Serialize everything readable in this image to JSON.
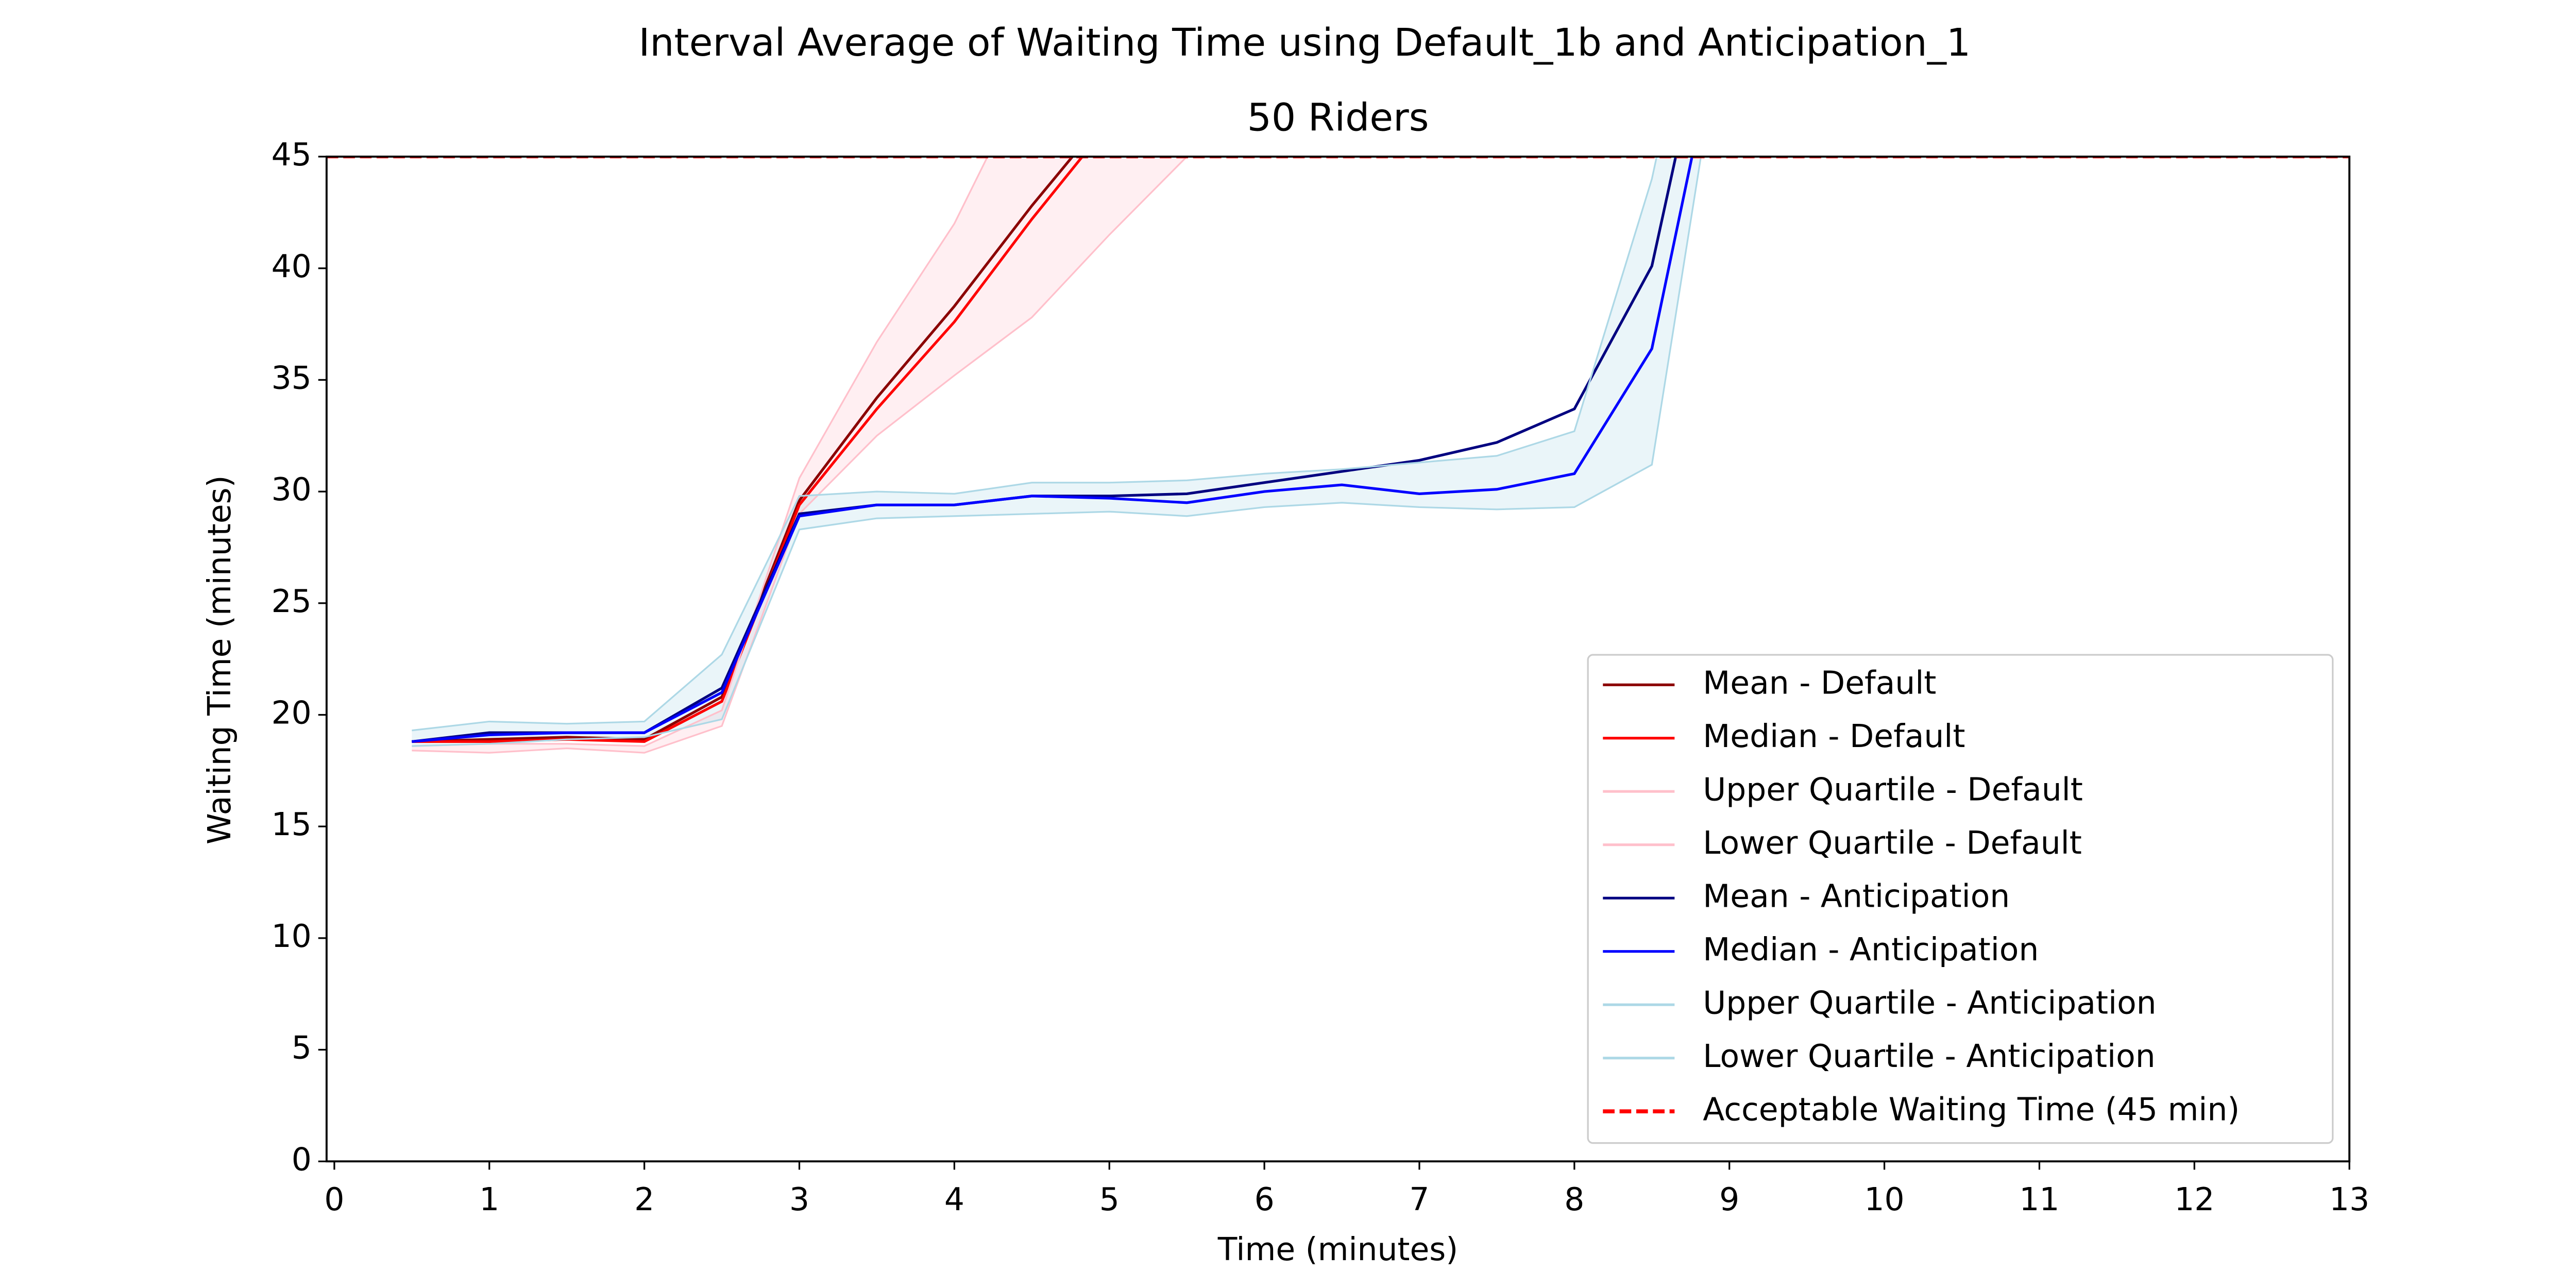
{
  "chart_data": {
    "type": "line",
    "title": "Interval Average of Waiting Time using Default_1b and Anticipation_1",
    "subtitle": "50 Riders",
    "x_label": "Time (minutes)",
    "y_label": "Waiting Time (minutes)",
    "x": [
      0.5,
      1,
      1.5,
      2,
      2.5,
      3,
      3.5,
      4,
      4.5,
      5,
      5.5,
      6,
      6.5,
      7,
      7.5,
      8,
      8.5,
      9
    ],
    "series": [
      {
        "name": "Mean - Default",
        "color": "#8b0000",
        "values": [
          18.8,
          18.9,
          19.0,
          18.9,
          20.8,
          29.6,
          34.2,
          38.3,
          42.8,
          47.0,
          null,
          null,
          null,
          null,
          null,
          null,
          null,
          null
        ]
      },
      {
        "name": "Median - Default",
        "color": "#ff0000",
        "values": [
          18.8,
          18.8,
          18.9,
          18.8,
          20.6,
          29.4,
          33.7,
          37.6,
          42.2,
          46.5,
          null,
          null,
          null,
          null,
          null,
          null,
          null,
          null
        ]
      },
      {
        "name": "Upper Quartile - Default",
        "color": "#ffc0cb",
        "values": [
          18.6,
          18.7,
          18.7,
          18.6,
          20.2,
          30.6,
          36.7,
          42.0,
          49.0,
          null,
          null,
          null,
          null,
          null,
          null,
          null,
          null,
          null
        ]
      },
      {
        "name": "Lower Quartile - Default",
        "color": "#ffc0cb",
        "values": [
          18.4,
          18.3,
          18.5,
          18.3,
          19.5,
          29.0,
          32.5,
          35.2,
          37.8,
          41.5,
          45.0,
          null,
          null,
          null,
          null,
          null,
          null,
          null
        ]
      },
      {
        "name": "Mean - Anticipation",
        "color": "#000080",
        "values": [
          18.8,
          19.2,
          19.2,
          19.2,
          21.2,
          29.0,
          29.4,
          29.4,
          29.8,
          29.8,
          29.9,
          30.4,
          30.9,
          31.4,
          32.2,
          33.7,
          40.1,
          56.0
        ]
      },
      {
        "name": "Median - Anticipation",
        "color": "#0000ff",
        "values": [
          18.8,
          19.1,
          19.2,
          19.2,
          21.0,
          28.9,
          29.4,
          29.4,
          29.8,
          29.7,
          29.5,
          30.0,
          30.3,
          29.9,
          30.1,
          30.8,
          36.4,
          53.0
        ]
      },
      {
        "name": "Upper Quartile - Anticipation",
        "color": "#add8e6",
        "values": [
          19.3,
          19.7,
          19.6,
          19.7,
          22.7,
          29.8,
          30.0,
          29.9,
          30.4,
          30.4,
          30.5,
          30.8,
          31.0,
          31.3,
          31.6,
          32.7,
          44.0,
          60.0
        ]
      },
      {
        "name": "Lower Quartile - Anticipation",
        "color": "#add8e6",
        "values": [
          18.6,
          18.7,
          18.9,
          19.0,
          19.8,
          28.3,
          28.8,
          28.9,
          29.0,
          29.1,
          28.9,
          29.3,
          29.5,
          29.3,
          29.2,
          29.3,
          31.2,
          53.0
        ]
      }
    ],
    "reference_line": {
      "name": "Acceptable Waiting Time (45 min)",
      "value": 45,
      "color": "#ff0000"
    },
    "xlim": [
      -0.05,
      13
    ],
    "ylim": [
      0,
      45
    ],
    "xticks": [
      0,
      1,
      2,
      3,
      4,
      5,
      6,
      7,
      8,
      9,
      10,
      11,
      12,
      13
    ],
    "yticks": [
      0,
      5,
      10,
      15,
      20,
      25,
      30,
      35,
      40,
      45
    ],
    "grid": false,
    "legend": "lower right"
  }
}
